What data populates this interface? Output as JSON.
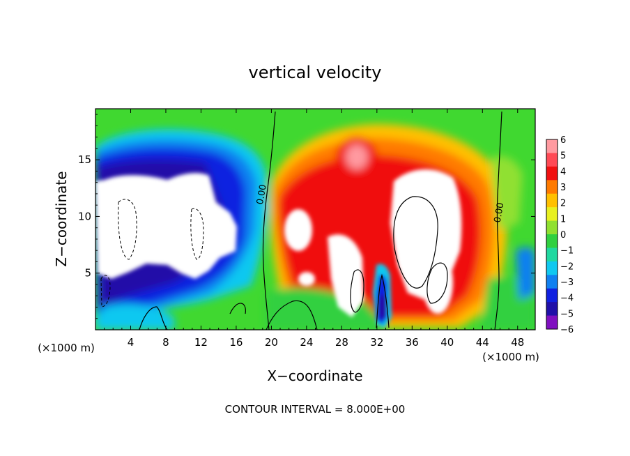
{
  "chart_data": {
    "type": "heatmap",
    "title": "vertical velocity",
    "xlabel": "X−coordinate",
    "ylabel": "Z−coordinate",
    "x_unit_left": "(×1000 m)",
    "x_unit_right": "(×1000 m)",
    "note": "CONTOUR INTERVAL = 8.000E+00",
    "xlim": [
      0,
      50
    ],
    "ylim": [
      0,
      19.5
    ],
    "x_ticks": [
      4,
      8,
      12,
      16,
      20,
      24,
      28,
      32,
      36,
      40,
      44,
      48
    ],
    "x_tick_labels": [
      "4",
      "8",
      "12",
      "16",
      "20",
      "24",
      "28",
      "32",
      "36",
      "40",
      "44",
      "48"
    ],
    "y_ticks": [
      5,
      10,
      15
    ],
    "y_tick_labels": [
      "5",
      "10",
      "15"
    ],
    "contour_labels": [
      {
        "text": "0.00",
        "x": 19.2,
        "z": 11.9
      },
      {
        "text": "0.00",
        "x": 46.2,
        "z": 10.3
      }
    ],
    "colorbar": {
      "levels": [
        6,
        5,
        4,
        3,
        2,
        1,
        0,
        -1,
        -2,
        -3,
        -4,
        -5,
        -6
      ],
      "labels": [
        "6",
        "5",
        "4",
        "3",
        "2",
        "1",
        "0",
        "−1",
        "−2",
        "−3",
        "−4",
        "−5",
        "−6"
      ],
      "colors": [
        "#ff9aa0",
        "#ff4a55",
        "#f01010",
        "#ff7a00",
        "#ffc000",
        "#e8f020",
        "#90e030",
        "#30d040",
        "#20d8a0",
        "#10c8f0",
        "#1080f0",
        "#1020e0",
        "#2010a8",
        "#8010c0"
      ]
    },
    "regions": [
      {
        "name": "background-near-zero",
        "color": "#40d830"
      },
      {
        "name": "downdraft-left",
        "color": "#1a2ee8",
        "value": "< -6",
        "center": [
          9,
          10
        ]
      },
      {
        "name": "updraft-center",
        "color": "#f02020",
        "value": "> 6",
        "center": [
          36,
          9
        ]
      },
      {
        "name": "downdraft-core-32",
        "color": "#1030e0",
        "center": [
          32.8,
          2.2
        ]
      }
    ]
  }
}
